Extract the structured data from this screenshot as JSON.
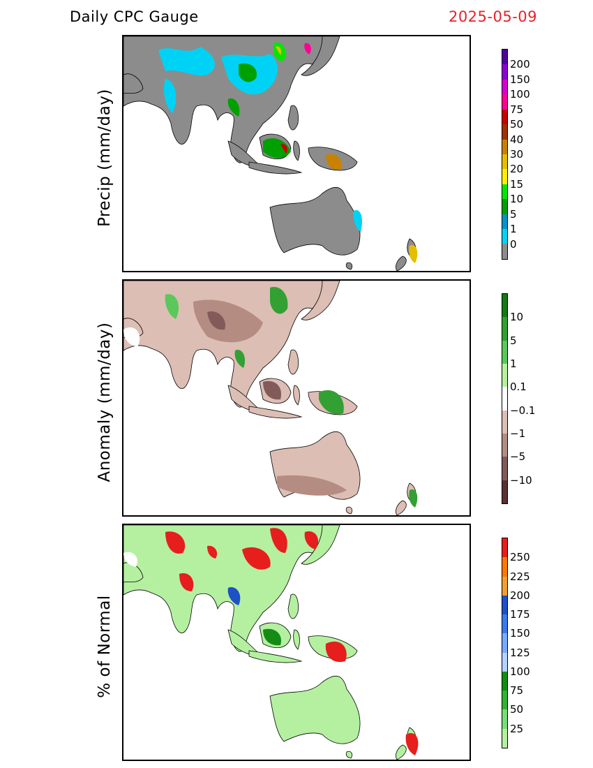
{
  "header": {
    "title": "Daily CPC Gauge",
    "date": "2025-05-09"
  },
  "panels": [
    {
      "ylabel": "Precip (mm/day)",
      "colorbar": {
        "colors": [
          "#8c8c8c",
          "#00d2f5",
          "#0096c8",
          "#00a000",
          "#00e600",
          "#fff000",
          "#e6be00",
          "#c88200",
          "#a03200",
          "#c80000",
          "#ff0096",
          "#d200d2",
          "#8c00d2",
          "#5000a0"
        ],
        "labels": [
          "0",
          "1",
          "5",
          "10",
          "15",
          "20",
          "30",
          "40",
          "50",
          "75",
          "100",
          "150",
          "200"
        ]
      }
    },
    {
      "ylabel": "Anomaly (mm/day)",
      "colorbar": {
        "colors": [
          "#5a3232",
          "#825a5a",
          "#b48c82",
          "#dcbeb4",
          "#ffffff",
          "#b4f0a0",
          "#5ac85a",
          "#32a032",
          "#147814"
        ],
        "labels": [
          "−10",
          "−5",
          "−1",
          "−0.1",
          "0.1",
          "1",
          "5",
          "10"
        ]
      }
    },
    {
      "ylabel": "% of Normal",
      "colorbar": {
        "colors": [
          "#b4f0a0",
          "#78dc78",
          "#32b432",
          "#148c14",
          "#b4d2ff",
          "#78aaff",
          "#3c78f0",
          "#1e50c8",
          "#f0a032",
          "#ff7800",
          "#e61e1e"
        ],
        "labels": [
          "25",
          "50",
          "75",
          "100",
          "125",
          "150",
          "175",
          "200",
          "225",
          "250"
        ]
      }
    }
  ]
}
